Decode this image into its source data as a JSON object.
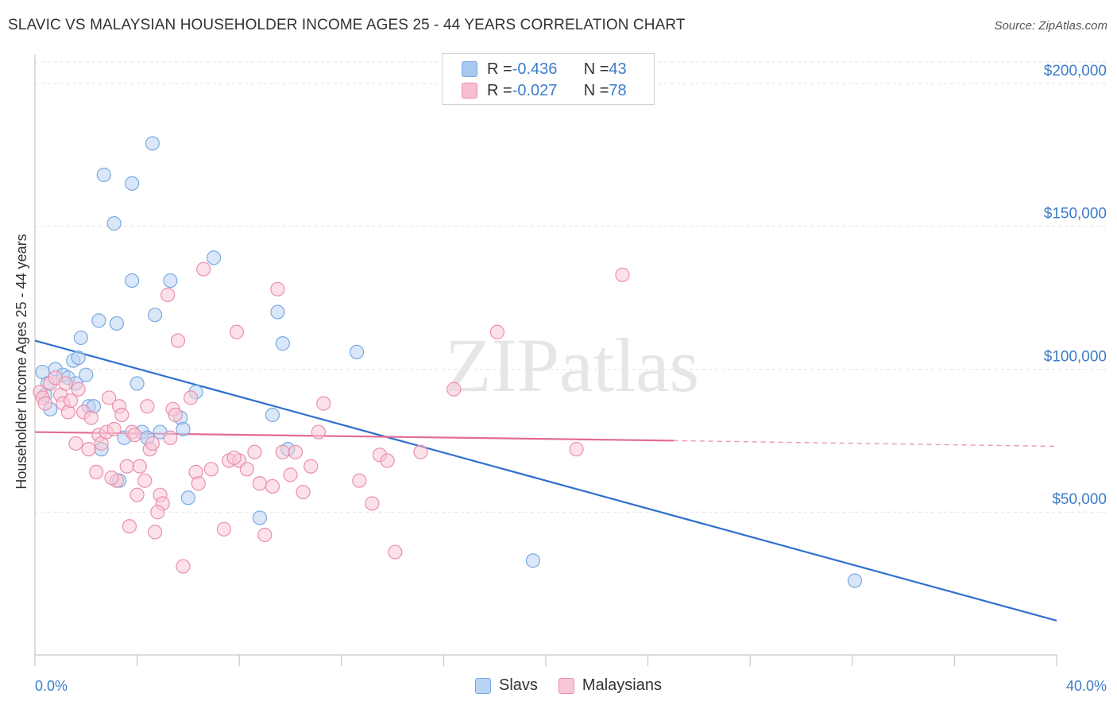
{
  "title": "SLAVIC VS MALAYSIAN HOUSEHOLDER INCOME AGES 25 - 44 YEARS CORRELATION CHART",
  "source": "Source: ZipAtlas.com",
  "watermark": "ZIPatlas",
  "legend": {
    "rows": [
      {
        "r_label": "R = ",
        "r_value": "-0.436",
        "n_label": "N = ",
        "n_value": "43",
        "color": "#a9c8ee",
        "border": "#7aaae0"
      },
      {
        "r_label": "R = ",
        "r_value": "-0.027",
        "n_label": "N = ",
        "n_value": "78",
        "color": "#f7bdd0",
        "border": "#e98fae"
      }
    ]
  },
  "bottom_legend": [
    {
      "label": "Slavs",
      "color": "#b9d3f2",
      "border": "#7aaae0"
    },
    {
      "label": "Malaysians",
      "color": "#f9c8d7",
      "border": "#e98fae"
    }
  ],
  "chart_data": {
    "type": "scatter",
    "title": "SLAVIC VS MALAYSIAN HOUSEHOLDER INCOME AGES 25 - 44 YEARS CORRELATION CHART",
    "xlabel": "",
    "ylabel": "Householder Income Ages 25 - 44 years",
    "xlim": [
      0,
      40
    ],
    "ylim": [
      0,
      210000
    ],
    "x_tick_labels": [
      "0.0%",
      "40.0%"
    ],
    "y_ticks": [
      50000,
      100000,
      150000,
      200000
    ],
    "y_tick_labels": [
      "$50,000",
      "$100,000",
      "$150,000",
      "$200,000"
    ],
    "grid": true,
    "legend_position": "top-center",
    "series": [
      {
        "name": "Slavs",
        "color": "#7aaae0",
        "fill": "#b9d3f2",
        "line_color": "#2f6fce",
        "trend": {
          "x": [
            0,
            40
          ],
          "y": [
            110000,
            12000
          ]
        },
        "points": [
          [
            0.3,
            99000
          ],
          [
            0.5,
            95000
          ],
          [
            0.4,
            91000
          ],
          [
            0.8,
            100000
          ],
          [
            1.1,
            98000
          ],
          [
            1.3,
            97000
          ],
          [
            1.5,
            103000
          ],
          [
            1.7,
            104000
          ],
          [
            1.8,
            111000
          ],
          [
            2.0,
            98000
          ],
          [
            2.1,
            87000
          ],
          [
            2.3,
            87000
          ],
          [
            2.5,
            117000
          ],
          [
            2.6,
            72000
          ],
          [
            2.7,
            168000
          ],
          [
            3.1,
            151000
          ],
          [
            3.2,
            116000
          ],
          [
            3.3,
            61000
          ],
          [
            3.5,
            76000
          ],
          [
            3.8,
            131000
          ],
          [
            3.8,
            165000
          ],
          [
            4.0,
            95000
          ],
          [
            4.2,
            78000
          ],
          [
            4.4,
            76000
          ],
          [
            4.6,
            179000
          ],
          [
            4.7,
            119000
          ],
          [
            4.9,
            78000
          ],
          [
            5.3,
            131000
          ],
          [
            5.7,
            83000
          ],
          [
            5.8,
            79000
          ],
          [
            6.0,
            55000
          ],
          [
            6.3,
            92000
          ],
          [
            7.0,
            139000
          ],
          [
            8.8,
            48000
          ],
          [
            9.3,
            84000
          ],
          [
            9.5,
            120000
          ],
          [
            9.7,
            109000
          ],
          [
            9.9,
            72000
          ],
          [
            12.6,
            106000
          ],
          [
            19.5,
            33000
          ],
          [
            32.1,
            26000
          ],
          [
            0.6,
            86000
          ],
          [
            1.6,
            95000
          ]
        ]
      },
      {
        "name": "Malaysians",
        "color": "#e98fae",
        "fill": "#f9c8d7",
        "line_color": "#e26b96",
        "trend": {
          "x": [
            0,
            25
          ],
          "y": [
            78000,
            75000
          ]
        },
        "trend_dash": {
          "x": [
            25,
            40
          ],
          "y": [
            75000,
            73000
          ]
        },
        "points": [
          [
            0.2,
            92000
          ],
          [
            0.3,
            90000
          ],
          [
            0.6,
            95000
          ],
          [
            0.8,
            97000
          ],
          [
            1.0,
            91000
          ],
          [
            1.1,
            88000
          ],
          [
            1.3,
            85000
          ],
          [
            1.4,
            89000
          ],
          [
            1.6,
            74000
          ],
          [
            1.7,
            93000
          ],
          [
            1.9,
            85000
          ],
          [
            2.1,
            72000
          ],
          [
            2.2,
            83000
          ],
          [
            2.4,
            64000
          ],
          [
            2.5,
            77000
          ],
          [
            2.6,
            74000
          ],
          [
            2.8,
            78000
          ],
          [
            2.9,
            90000
          ],
          [
            3.1,
            79000
          ],
          [
            3.2,
            61000
          ],
          [
            3.3,
            87000
          ],
          [
            3.4,
            84000
          ],
          [
            3.6,
            66000
          ],
          [
            3.7,
            45000
          ],
          [
            3.8,
            78000
          ],
          [
            3.9,
            77000
          ],
          [
            4.0,
            56000
          ],
          [
            4.1,
            66000
          ],
          [
            4.3,
            61000
          ],
          [
            4.4,
            87000
          ],
          [
            4.5,
            72000
          ],
          [
            4.6,
            74000
          ],
          [
            4.7,
            43000
          ],
          [
            4.9,
            56000
          ],
          [
            5.0,
            53000
          ],
          [
            5.2,
            126000
          ],
          [
            5.3,
            76000
          ],
          [
            5.4,
            86000
          ],
          [
            5.5,
            84000
          ],
          [
            5.6,
            110000
          ],
          [
            5.8,
            31000
          ],
          [
            6.1,
            90000
          ],
          [
            6.3,
            64000
          ],
          [
            6.6,
            135000
          ],
          [
            6.9,
            65000
          ],
          [
            7.4,
            44000
          ],
          [
            7.6,
            68000
          ],
          [
            7.9,
            113000
          ],
          [
            8.0,
            68000
          ],
          [
            8.3,
            65000
          ],
          [
            8.6,
            71000
          ],
          [
            8.8,
            60000
          ],
          [
            9.0,
            42000
          ],
          [
            9.3,
            59000
          ],
          [
            9.5,
            128000
          ],
          [
            9.7,
            71000
          ],
          [
            10.0,
            63000
          ],
          [
            10.2,
            71000
          ],
          [
            10.5,
            57000
          ],
          [
            10.8,
            66000
          ],
          [
            11.1,
            78000
          ],
          [
            11.3,
            88000
          ],
          [
            12.7,
            61000
          ],
          [
            13.2,
            53000
          ],
          [
            13.5,
            70000
          ],
          [
            13.8,
            68000
          ],
          [
            14.1,
            36000
          ],
          [
            15.1,
            71000
          ],
          [
            16.4,
            93000
          ],
          [
            18.1,
            113000
          ],
          [
            21.2,
            72000
          ],
          [
            23.0,
            133000
          ],
          [
            0.4,
            88000
          ],
          [
            1.2,
            95000
          ],
          [
            3.0,
            62000
          ],
          [
            6.4,
            60000
          ],
          [
            7.8,
            69000
          ],
          [
            4.8,
            50000
          ]
        ]
      }
    ]
  }
}
